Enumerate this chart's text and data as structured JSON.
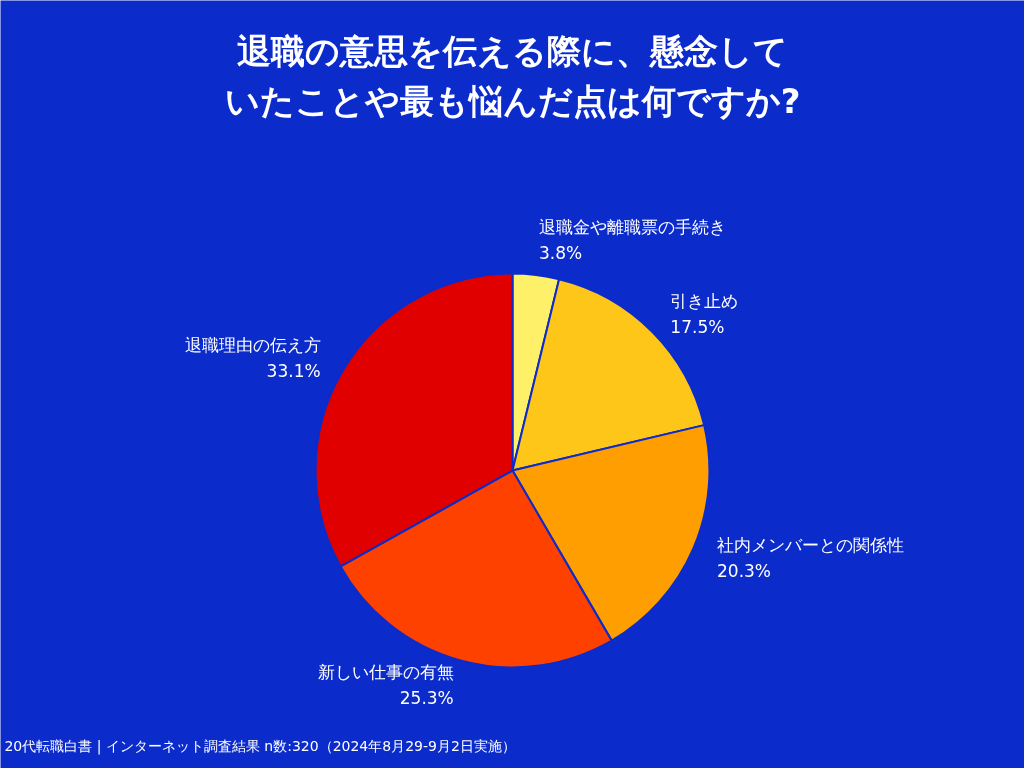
{
  "chart_data": {
    "type": "pie",
    "title": "退職の意思を伝える際に、懸念していたことや最も悩んだ点は何ですか?",
    "categories": [
      "退職金や離職票の手続き",
      "引き止め",
      "社内メンバーとの関係性",
      "新しい仕事の有無",
      "退職理由の伝え方"
    ],
    "values": [
      3.8,
      17.5,
      20.3,
      25.3,
      33.1
    ],
    "colors": [
      "#fff06a",
      "#ffc61a",
      "#ff9e00",
      "#ff4100",
      "#e00000"
    ],
    "value_labels": [
      "3.8%",
      "17.5%",
      "20.3%",
      "25.3%",
      "33.1%"
    ],
    "annotations": [
      "20代転職白書 | インターネット調査結果 n数:320（2024年8月29-9月2日実施）"
    ]
  }
}
